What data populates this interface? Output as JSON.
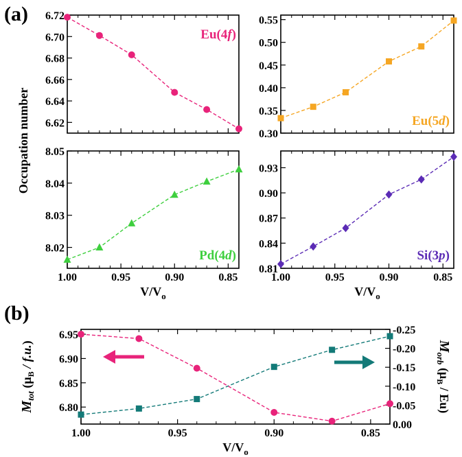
{
  "chart_data": [
    {
      "id": "eu4f",
      "panel_label": "(a)",
      "type": "line",
      "x": [
        1.0,
        0.97,
        0.94,
        0.9,
        0.87,
        0.84
      ],
      "series": [
        {
          "name": "Eu(4f)",
          "values": [
            6.718,
            6.701,
            6.683,
            6.648,
            6.632,
            6.614
          ],
          "color": "#e8237a",
          "marker": "circle"
        }
      ],
      "label": {
        "base": "Eu(4",
        "italic": "f",
        "end": ")"
      },
      "xlim": [
        1.0,
        0.84
      ],
      "ylim": [
        6.61,
        6.72
      ],
      "yticks": [
        "6.62",
        "6.64",
        "6.66",
        "6.68",
        "6.70",
        "6.72"
      ],
      "xticks": [],
      "ylabel": "Occupation number",
      "xlabel": ""
    },
    {
      "id": "eu5d",
      "type": "line",
      "x": [
        1.0,
        0.97,
        0.94,
        0.9,
        0.87,
        0.84
      ],
      "series": [
        {
          "name": "Eu(5d)",
          "values": [
            0.333,
            0.358,
            0.39,
            0.458,
            0.491,
            0.548
          ],
          "color": "#f5a623",
          "marker": "square"
        }
      ],
      "label": {
        "base": "Eu(5",
        "italic": "d",
        "end": ")"
      },
      "xlim": [
        1.0,
        0.84
      ],
      "ylim": [
        0.3,
        0.56
      ],
      "yticks": [
        "0.30",
        "0.35",
        "0.40",
        "0.45",
        "0.50",
        "0.55"
      ],
      "xticks": [],
      "ylabel": "",
      "xlabel": ""
    },
    {
      "id": "pd4d",
      "type": "line",
      "x": [
        1.0,
        0.97,
        0.94,
        0.9,
        0.87,
        0.84
      ],
      "series": [
        {
          "name": "Pd(4d)",
          "values": [
            8.0162,
            8.02,
            8.0275,
            8.0364,
            8.0405,
            8.0443
          ],
          "color": "#3ecf3e",
          "marker": "triangle"
        }
      ],
      "label": {
        "base": "Pd(4",
        "italic": "d",
        "end": ")"
      },
      "xlim": [
        1.0,
        0.84
      ],
      "ylim": [
        8.0135,
        8.05
      ],
      "yticks": [
        "8.02",
        "8.03",
        "8.04",
        "8.05"
      ],
      "xticks": [
        "1.00",
        "0.95",
        "0.90",
        "0.85"
      ],
      "ylabel": "",
      "xlabel": {
        "base": "V/V",
        "sub": "o"
      }
    },
    {
      "id": "si3p",
      "type": "line",
      "x": [
        1.0,
        0.97,
        0.94,
        0.9,
        0.87,
        0.84
      ],
      "series": [
        {
          "name": "Si(3p)",
          "values": [
            0.815,
            0.836,
            0.858,
            0.898,
            0.916,
            0.943
          ],
          "color": "#5b2bb5",
          "marker": "diamond"
        }
      ],
      "label": {
        "base": "Si(3",
        "italic": "p",
        "end": ")"
      },
      "xlim": [
        1.0,
        0.84
      ],
      "ylim": [
        0.81,
        0.95
      ],
      "yticks": [
        "0.81",
        "0.84",
        "0.87",
        "0.90",
        "0.93"
      ],
      "xticks": [
        "1.00",
        "0.95",
        "0.90",
        "0.85"
      ],
      "ylabel": "",
      "xlabel": {
        "base": "V/V",
        "sub": "o"
      }
    },
    {
      "id": "moments",
      "panel_label": "(b)",
      "type": "line",
      "x": [
        1.0,
        0.97,
        0.94,
        0.9,
        0.87,
        0.84
      ],
      "series": [
        {
          "name": "Mtot",
          "values": [
            6.95,
            6.941,
            6.88,
            6.789,
            6.771,
            6.807
          ],
          "color": "#e8237a",
          "marker": "circle",
          "axis": "left"
        },
        {
          "name": "Morb",
          "values": [
            0.025,
            0.041,
            0.066,
            0.151,
            0.196,
            0.232
          ],
          "color": "#137a78",
          "marker": "square",
          "axis": "right"
        }
      ],
      "xlim": [
        1.0,
        0.84
      ],
      "ylim": [
        6.765,
        6.96
      ],
      "yticks": [
        "6.80",
        "6.85",
        "6.90",
        "6.95"
      ],
      "y2lim": [
        0.0,
        0.25
      ],
      "y2ticks": [
        "0.00",
        "-0.05",
        "-0.10",
        "-0.15",
        "-0.20",
        "-0.25"
      ],
      "xticks": [
        "1.00",
        "0.95",
        "0.90",
        "0.85"
      ],
      "xlabel": {
        "base": "V/V",
        "sub": "o"
      },
      "ylabel": {
        "italic_main": "M",
        "italic_sub": "tot",
        "mid": " (μ",
        "sub2": "B",
        "italic_tail": " / f.u.",
        "end": ")"
      },
      "y2label": {
        "italic_main": "M",
        "italic_sub": "orb",
        "mid": " (μ",
        "sub2": "B",
        "tail": " / Eu)"
      }
    }
  ]
}
